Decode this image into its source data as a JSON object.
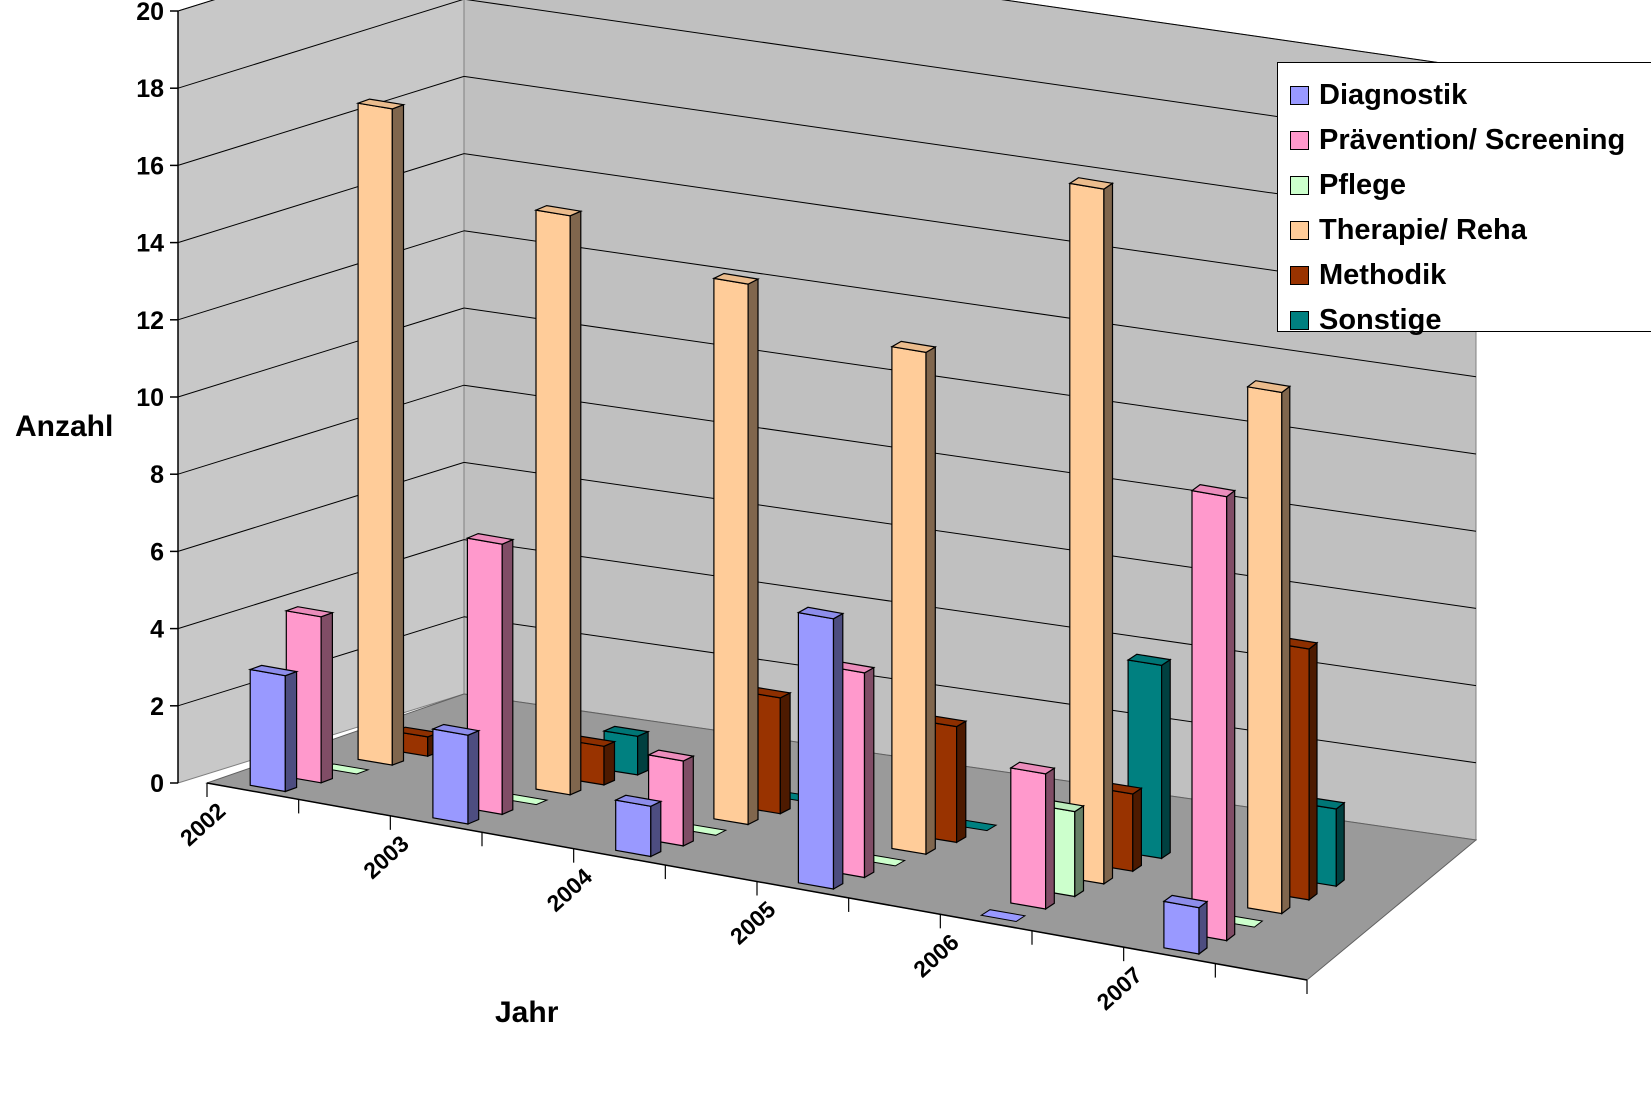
{
  "chart_data": {
    "type": "bar",
    "variant": "3d-clustered-column",
    "title": "",
    "xlabel": "Jahr",
    "ylabel": "Anzahl",
    "ylim": [
      0,
      20
    ],
    "yticks": [
      0,
      2,
      4,
      6,
      8,
      10,
      12,
      14,
      16,
      18,
      20
    ],
    "grid": true,
    "legend_position": "top-right",
    "categories": [
      "2002",
      "2003",
      "2004",
      "2005",
      "2006",
      "2007"
    ],
    "series": [
      {
        "name": "Diagnostik",
        "color": "#9999ff",
        "values": [
          3,
          2.3,
          1.3,
          7,
          0,
          1.2
        ]
      },
      {
        "name": "Prävention/ Screening",
        "color": "#ff99cc",
        "values": [
          4.3,
          7,
          2.2,
          5.3,
          3.5,
          11.5
        ]
      },
      {
        "name": "Pflege",
        "color": "#ccffcc",
        "values": [
          0,
          0,
          0,
          0,
          2.2,
          0
        ]
      },
      {
        "name": "Therapie/ Reha",
        "color": "#ffcc99",
        "values": [
          17,
          15,
          14,
          13,
          18,
          13.5
        ]
      },
      {
        "name": "Methodik",
        "color": "#993300",
        "values": [
          0.5,
          1,
          3,
          3,
          2,
          6.5
        ]
      },
      {
        "name": "Sonstige",
        "color": "#008080",
        "values": [
          0,
          1,
          0,
          0,
          5,
          2
        ]
      }
    ]
  }
}
